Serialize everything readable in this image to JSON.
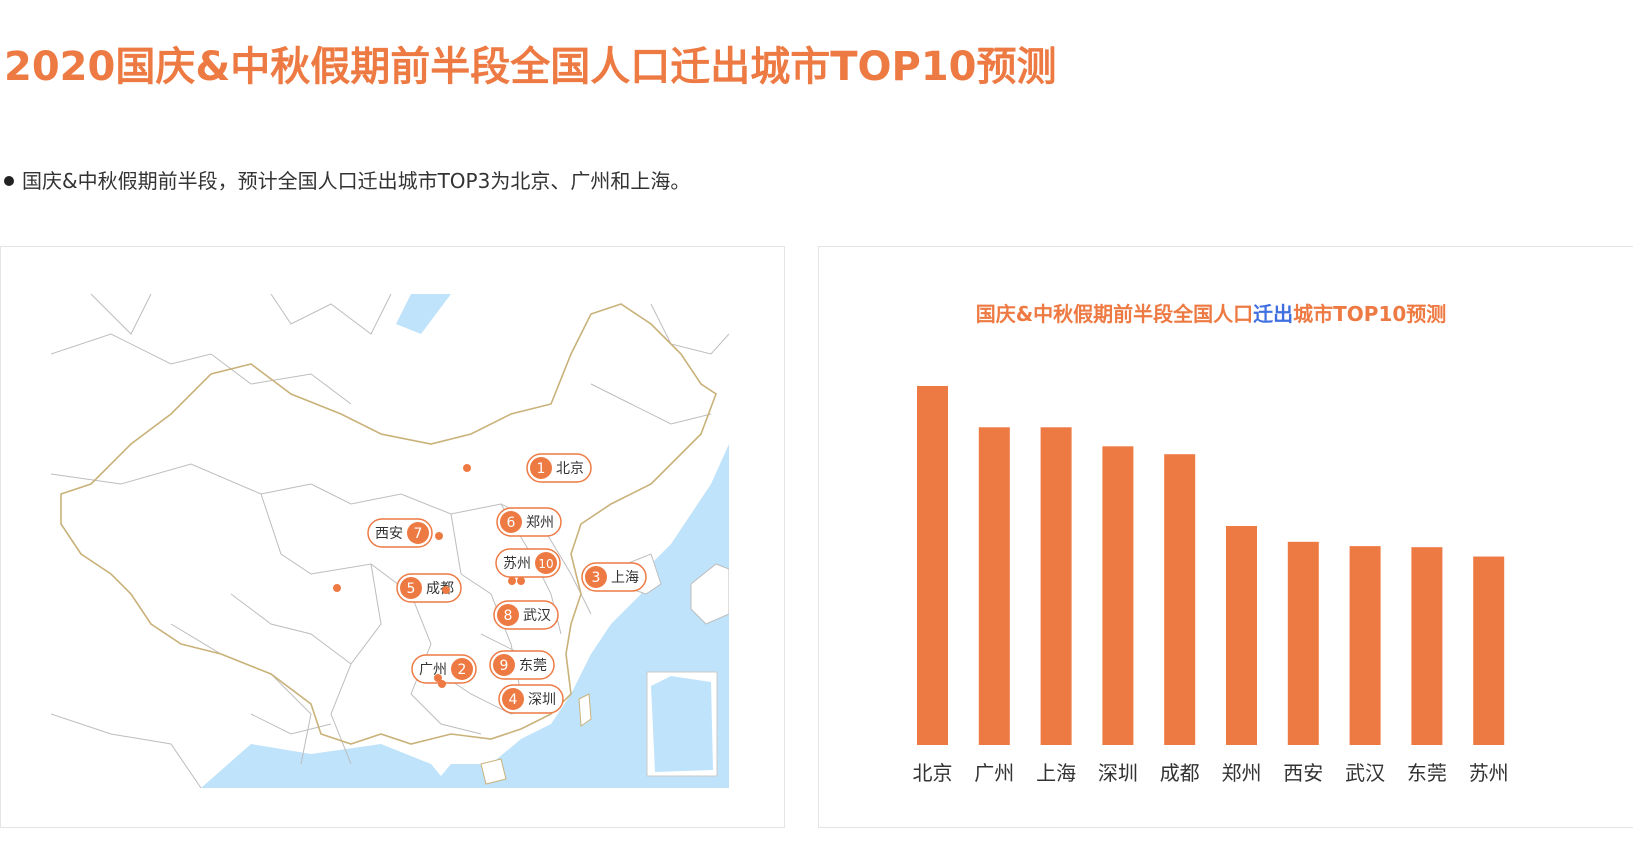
{
  "header": {
    "title": "2020国庆&中秋假期前半段全国人口迁出城市TOP10预测",
    "bullet": "国庆&中秋假期前半段，预计全国人口迁出城市TOP3为北京、广州和上海。"
  },
  "colors": {
    "accent": "#ee7a43",
    "highlight": "#3f6fe0",
    "sea": "#bfe3fb",
    "land": "#ffffff",
    "border_major": "#c9b27a",
    "border_minor": "#bdbdbd"
  },
  "map": {
    "cities": [
      {
        "rank": "1",
        "name": "北京"
      },
      {
        "rank": "2",
        "name": "广州"
      },
      {
        "rank": "3",
        "name": "上海"
      },
      {
        "rank": "4",
        "name": "深圳"
      },
      {
        "rank": "5",
        "name": "成都"
      },
      {
        "rank": "6",
        "name": "郑州"
      },
      {
        "rank": "7",
        "name": "西安"
      },
      {
        "rank": "8",
        "name": "武汉"
      },
      {
        "rank": "9",
        "name": "东莞"
      },
      {
        "rank": "10",
        "name": "苏州"
      }
    ]
  },
  "chart_data": {
    "type": "bar",
    "title_parts": [
      "国庆&中秋假期前半段全国人口",
      "迁出",
      "城市TOP10预测"
    ],
    "categories": [
      "北京",
      "广州",
      "上海",
      "深圳",
      "成都",
      "郑州",
      "西安",
      "武汉",
      "东莞",
      "苏州"
    ],
    "values": [
      100,
      88.5,
      88.5,
      83.2,
      81,
      61,
      56.6,
      55.4,
      55.1,
      52.5
    ],
    "ylim": [
      0,
      100
    ],
    "grid": false,
    "legend": "none"
  }
}
